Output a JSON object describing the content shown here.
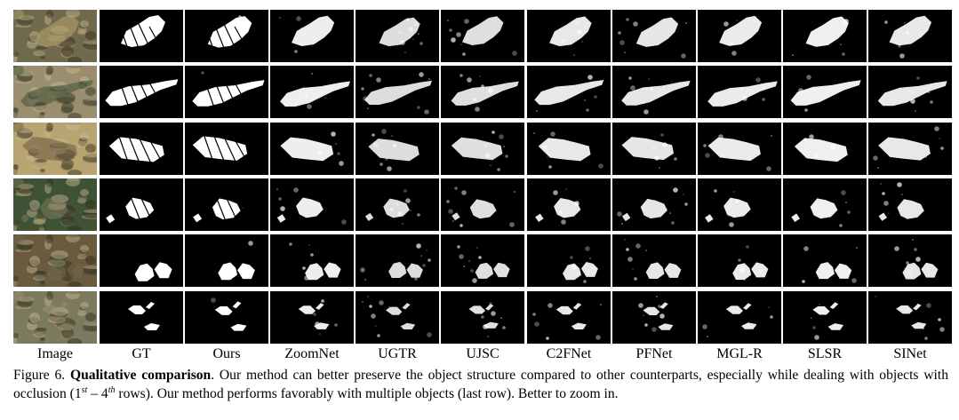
{
  "figure": {
    "columns": [
      "Image",
      "GT",
      "Ours",
      "ZoomNet",
      "UGTR",
      "UJSC",
      "C2FNet",
      "PFNet",
      "MGL-R",
      "SLSR",
      "SINet"
    ],
    "row_count": 6,
    "caption": {
      "label": "Figure 6.",
      "title": "Qualitative comparison",
      "text_1": ". Our method can better preserve the object structure compared to other counterparts, especially while dealing with objects with occlusion (1",
      "sup_1": "st",
      "text_2": " – 4",
      "sup_2": "th",
      "text_3": " rows). Our method performs favorably with multiple objects (last row). Better to zoom in."
    }
  },
  "colors": {
    "mask_background": "#000000",
    "mask_foreground": "#ffffff",
    "photo_tones": [
      "#6f6a4c",
      "#9b8e6f",
      "#b8a470",
      "#3f5236",
      "#6b5a3e",
      "#7c7a5e"
    ]
  }
}
